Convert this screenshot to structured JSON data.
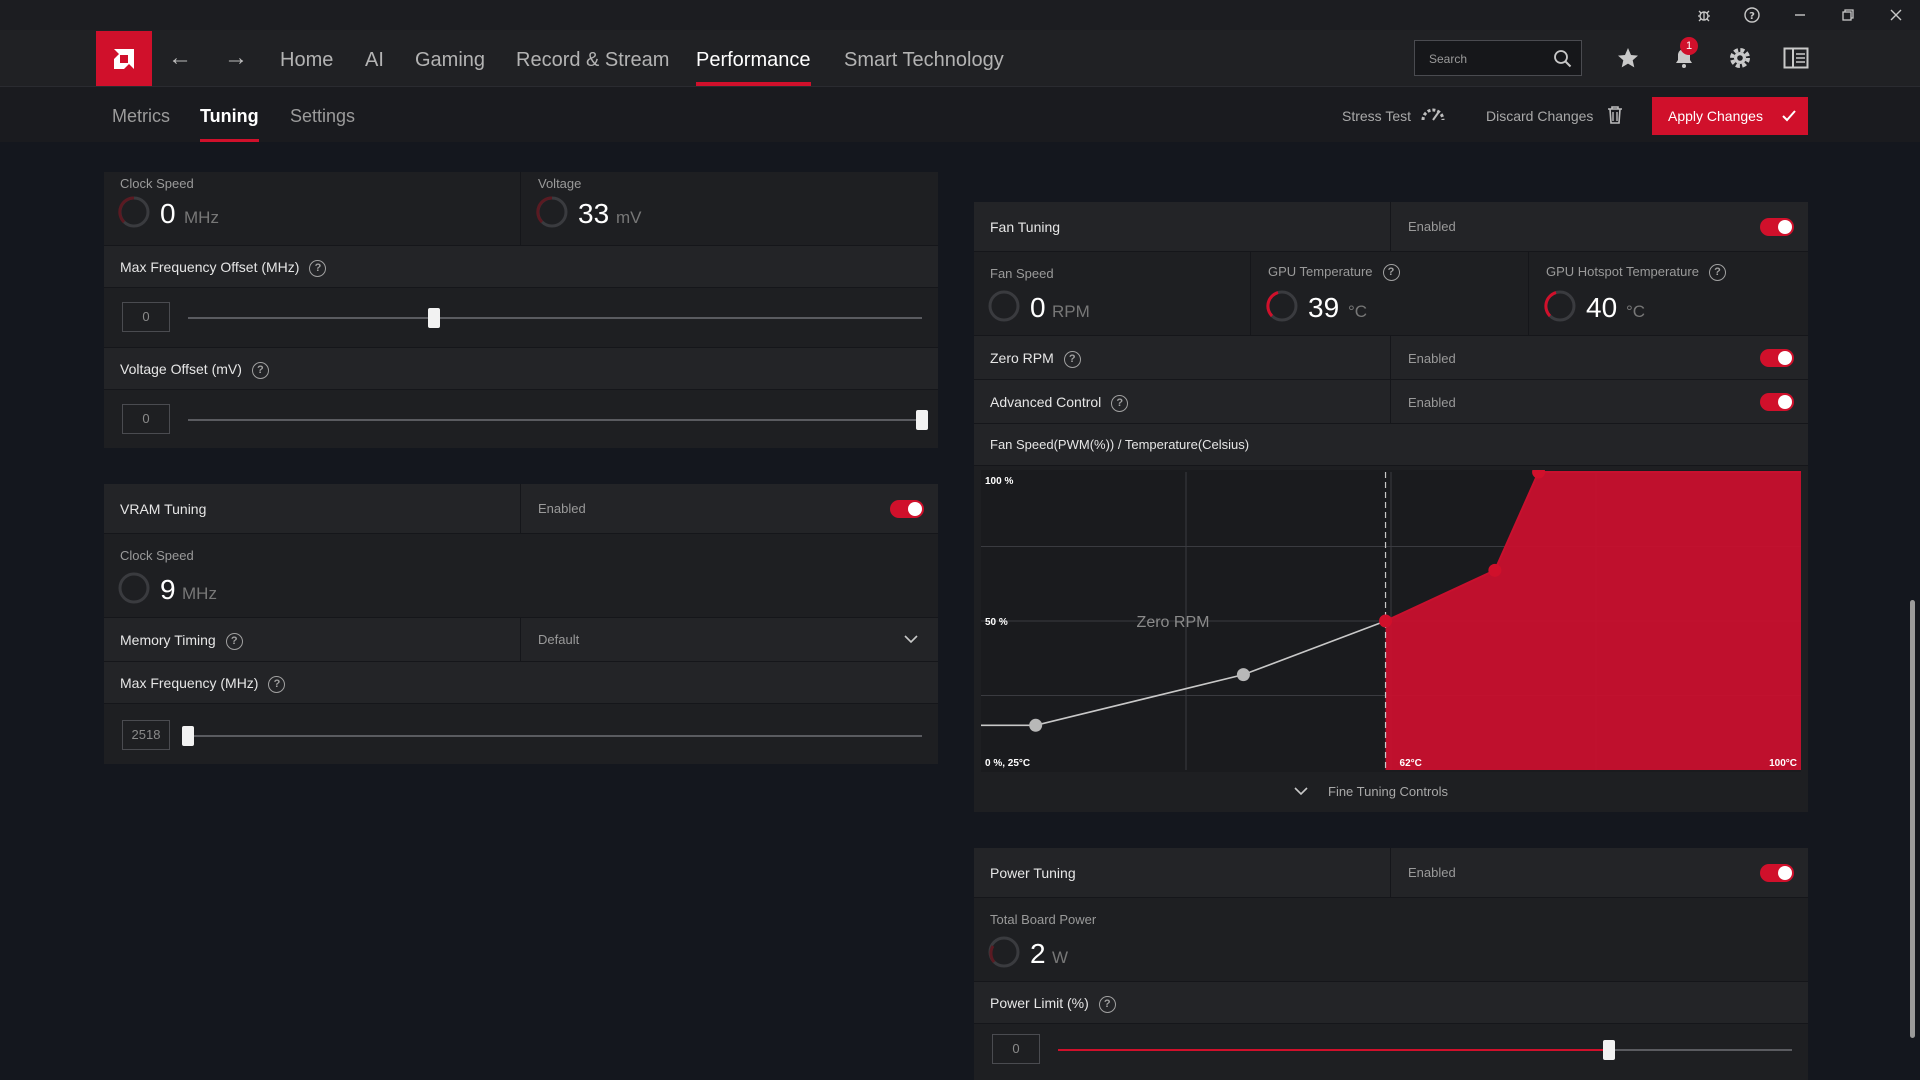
{
  "nav": {
    "items": [
      "Home",
      "AI",
      "Gaming",
      "Record & Stream",
      "Performance",
      "Smart Technology"
    ],
    "active": "Performance",
    "search_placeholder": "Search",
    "notification_count": "1"
  },
  "subnav": {
    "tabs": [
      "Metrics",
      "Tuning",
      "Settings"
    ],
    "active": "Tuning",
    "stress_test": "Stress Test",
    "discard": "Discard Changes",
    "apply": "Apply Changes"
  },
  "gpu": {
    "clock_label": "Clock Speed",
    "clock_value": "0",
    "clock_unit": "MHz",
    "voltage_label": "Voltage",
    "voltage_value": "33",
    "voltage_unit": "mV",
    "max_freq_offset_label": "Max Frequency Offset (MHz)",
    "max_freq_offset_value": "0",
    "max_freq_offset_position": 0.335,
    "voltage_offset_label": "Voltage Offset (mV)",
    "voltage_offset_value": "0",
    "voltage_offset_position": 1.0
  },
  "vram": {
    "title": "VRAM Tuning",
    "status": "Enabled",
    "clock_label": "Clock Speed",
    "clock_value": "9",
    "clock_unit": "MHz",
    "memory_timing_label": "Memory Timing",
    "memory_timing_value": "Default",
    "max_freq_label": "Max Frequency (MHz)",
    "max_freq_value": "2518",
    "max_freq_position": 0.0
  },
  "fan": {
    "title": "Fan Tuning",
    "status": "Enabled",
    "fan_speed_label": "Fan Speed",
    "fan_speed_value": "0",
    "fan_speed_unit": "RPM",
    "gpu_temp_label": "GPU Temperature",
    "gpu_temp_value": "39",
    "gpu_temp_unit": "°C",
    "hotspot_label": "GPU Hotspot Temperature",
    "hotspot_value": "40",
    "hotspot_unit": "°C",
    "zero_rpm_label": "Zero RPM",
    "zero_rpm_status": "Enabled",
    "advanced_label": "Advanced Control",
    "advanced_status": "Enabled",
    "curve_title": "Fan Speed(PWM(%)) / Temperature(Celsius)",
    "fine_tuning": "Fine Tuning Controls"
  },
  "power": {
    "title": "Power Tuning",
    "status": "Enabled",
    "tbp_label": "Total Board Power",
    "tbp_value": "2",
    "tbp_unit": "W",
    "limit_label": "Power Limit (%)",
    "limit_value": "0",
    "limit_position": 0.75
  },
  "chart_data": {
    "type": "area",
    "title": "Fan Speed(PWM(%)) / Temperature(Celsius)",
    "annotation": "Zero RPM",
    "y_tick_labels": [
      "100 %",
      "50 %",
      "0 %, 25°C"
    ],
    "x_tick_labels": [
      "62°C",
      "100°C"
    ],
    "xlim": [
      25,
      100
    ],
    "ylim": [
      0,
      100
    ],
    "zero_rpm_stop_temp": 62,
    "x": [
      25,
      30,
      49,
      62,
      72,
      76,
      100
    ],
    "y": [
      15,
      15,
      32,
      50,
      67,
      100,
      100
    ],
    "colors": {
      "fill": "#c8102e",
      "line": "#c8c8c8",
      "accent": "#d0102b"
    }
  }
}
